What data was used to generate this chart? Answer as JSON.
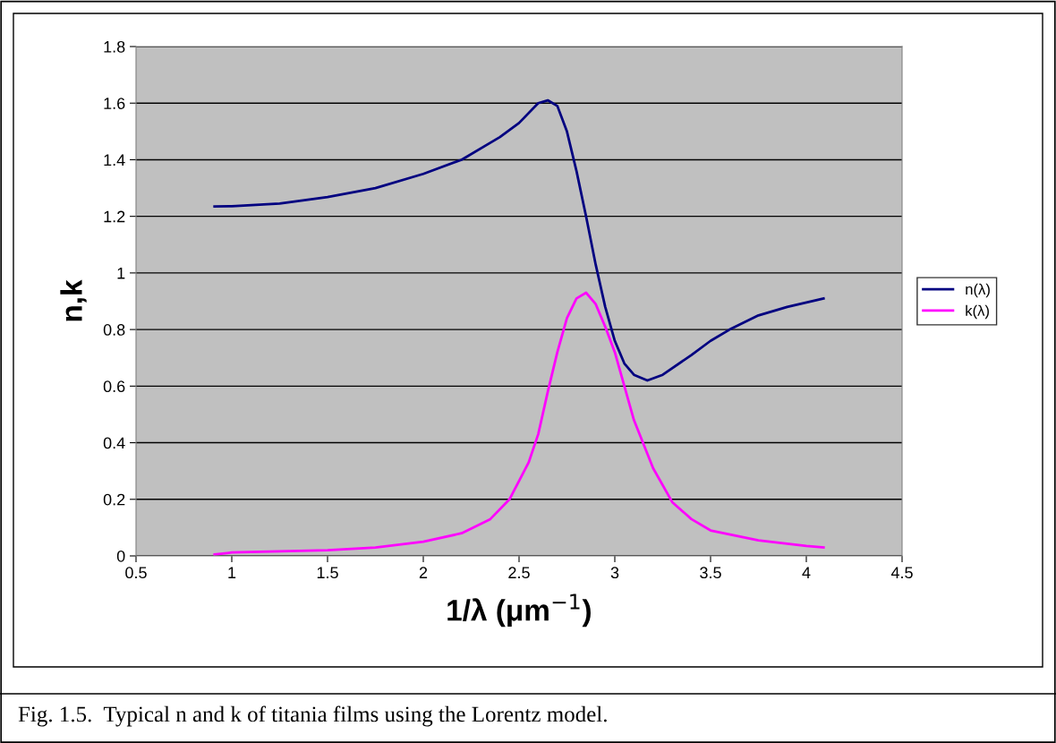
{
  "chart_data": {
    "type": "line",
    "xlabel": "1/λ (μm$^{−1}$)",
    "ylabel": "n,k",
    "annotations": [
      "Fig. 1.5.  Typical n and k of titania films using the Lorentz model."
    ],
    "series": [
      {
        "name": "n(λ)",
        "color": "#000080",
        "x": [
          0.91,
          1.0,
          1.25,
          1.5,
          1.75,
          2.0,
          2.2,
          2.4,
          2.5,
          2.6,
          2.65,
          2.7,
          2.75,
          2.8,
          2.85,
          2.9,
          2.95,
          3.0,
          3.05,
          3.1,
          3.17,
          3.25,
          3.4,
          3.5,
          3.6,
          3.75,
          3.9,
          4.09
        ],
        "values": [
          1.235,
          1.236,
          1.245,
          1.268,
          1.3,
          1.35,
          1.4,
          1.48,
          1.53,
          1.6,
          1.61,
          1.59,
          1.5,
          1.36,
          1.2,
          1.03,
          0.88,
          0.76,
          0.68,
          0.64,
          0.62,
          0.64,
          0.71,
          0.76,
          0.8,
          0.85,
          0.88,
          0.91
        ]
      },
      {
        "name": "k(λ)",
        "color": "#ff00ff",
        "x": [
          0.91,
          1.0,
          1.5,
          1.75,
          2.0,
          2.2,
          2.35,
          2.45,
          2.55,
          2.6,
          2.65,
          2.7,
          2.75,
          2.8,
          2.85,
          2.9,
          2.95,
          3.0,
          3.05,
          3.1,
          3.2,
          3.3,
          3.4,
          3.5,
          3.75,
          4.0,
          4.09
        ],
        "values": [
          0.005,
          0.012,
          0.02,
          0.03,
          0.05,
          0.08,
          0.13,
          0.2,
          0.33,
          0.43,
          0.58,
          0.72,
          0.84,
          0.91,
          0.93,
          0.89,
          0.81,
          0.72,
          0.6,
          0.48,
          0.31,
          0.19,
          0.13,
          0.09,
          0.055,
          0.035,
          0.03
        ]
      }
    ],
    "xlim": [
      0.5,
      4.5
    ],
    "xticks": [
      0.5,
      1,
      1.5,
      2,
      2.5,
      3,
      3.5,
      4,
      4.5
    ],
    "ylim": [
      0,
      1.8
    ],
    "yticks": [
      0,
      0.2,
      0.4,
      0.6,
      0.8,
      1,
      1.2,
      1.4,
      1.6,
      1.8
    ],
    "grid": "y",
    "legend": "right",
    "marker": "none",
    "line_style": "solid"
  }
}
